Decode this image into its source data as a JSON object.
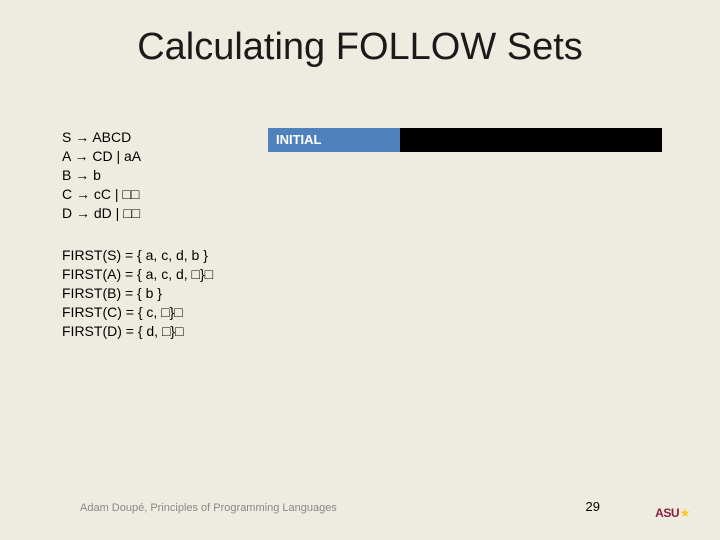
{
  "title": "Calculating FOLLOW Sets",
  "grammar": {
    "line1": "S → ABCD",
    "line2": "A → CD | aA",
    "line3": "B → b",
    "line4": "C → cC | □□",
    "line5": "D → dD | □□"
  },
  "first": {
    "line1": "FIRST(S) = { a, c, d, b }",
    "line2": "FIRST(A) = { a, c, d, □}□",
    "line3": "FIRST(B) = { b }",
    "line4": "FIRST(C) = { c, □}□",
    "line5": "FIRST(D) = { d, □}□"
  },
  "table": {
    "initial_label": "INITIAL"
  },
  "footer": "Adam Doupé, Principles of Programming Languages",
  "page_num": "29",
  "logo_text": "ASU",
  "colors": {
    "background": "#eeece1",
    "table_header": "#4f81bd",
    "logo_maroon": "#8c1d40",
    "logo_gold": "#ffc627"
  }
}
